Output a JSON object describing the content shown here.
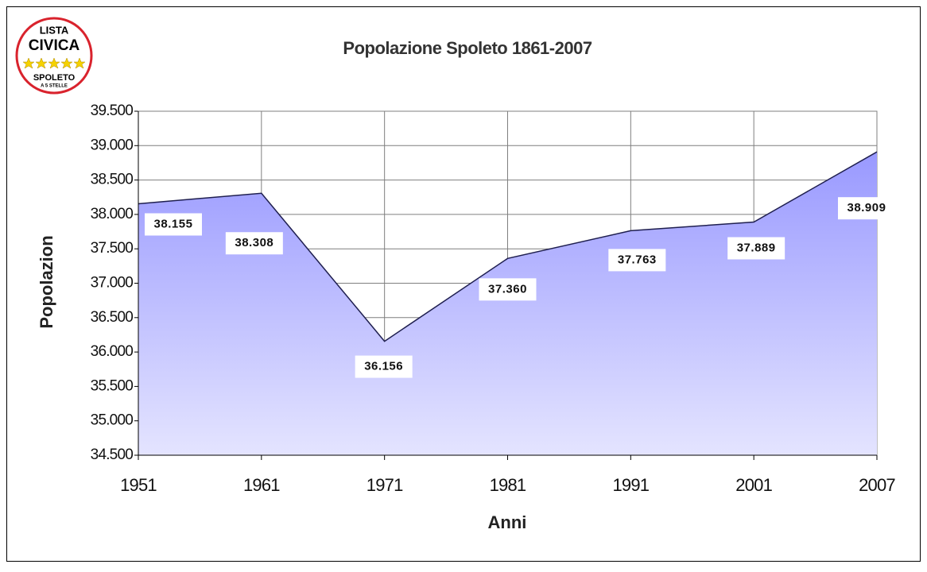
{
  "chart_data": {
    "type": "area",
    "title": "Popolazione Spoleto 1861-2007",
    "x_label": "Anni",
    "y_label": "Popolazion",
    "categories": [
      "1951",
      "1961",
      "1971",
      "1981",
      "1991",
      "2001",
      "2007"
    ],
    "values": [
      38155,
      38308,
      36156,
      37360,
      37763,
      37889,
      38909
    ],
    "value_labels": [
      "38.155",
      "38.308",
      "36.156",
      "37.360",
      "37.763",
      "37.889",
      "38.909"
    ],
    "color": "#9999ff",
    "line_color": "#1f1f4f",
    "ylim": [
      34500,
      39500
    ],
    "yticks": [
      {
        "value": 34500,
        "label": "34.500"
      },
      {
        "value": 35000,
        "label": "35.000"
      },
      {
        "value": 35500,
        "label": "35.500"
      },
      {
        "value": 36000,
        "label": "36.000"
      },
      {
        "value": 36500,
        "label": "36.500"
      },
      {
        "value": 37000,
        "label": "37.000"
      },
      {
        "value": 37500,
        "label": "37.500"
      },
      {
        "value": 38000,
        "label": "38.000"
      },
      {
        "value": 38500,
        "label": "38.500"
      },
      {
        "value": 39000,
        "label": "39.000"
      },
      {
        "value": 39500,
        "label": "39.500"
      }
    ],
    "grid": true
  },
  "logo": {
    "lines": [
      "LISTA",
      "CIVICA",
      "SPOLETO",
      "A 5 STELLE"
    ]
  }
}
